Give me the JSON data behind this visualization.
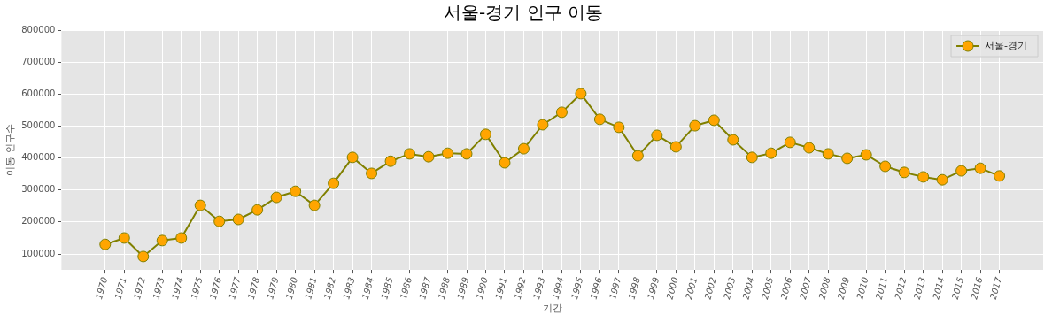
{
  "chart_data": {
    "type": "line",
    "title": "서울-경기 인구 이동",
    "xlabel": "기간",
    "ylabel": "이동 인구수",
    "categories": [
      "1970",
      "1971",
      "1972",
      "1973",
      "1974",
      "1975",
      "1976",
      "1977",
      "1978",
      "1979",
      "1980",
      "1981",
      "1982",
      "1983",
      "1984",
      "1985",
      "1986",
      "1987",
      "1988",
      "1989",
      "1990",
      "1991",
      "1992",
      "1993",
      "1994",
      "1995",
      "1996",
      "1997",
      "1998",
      "1999",
      "2000",
      "2001",
      "2002",
      "2003",
      "2004",
      "2005",
      "2006",
      "2007",
      "2008",
      "2009",
      "2010",
      "2011",
      "2012",
      "2013",
      "2014",
      "2015",
      "2016",
      "2017"
    ],
    "series": [
      {
        "name": "서울-경기",
        "color": "#808000",
        "values": [
          130000,
          150000,
          92000,
          142000,
          150000,
          252000,
          202000,
          208000,
          238000,
          277000,
          296000,
          252000,
          321000,
          402000,
          352000,
          390000,
          413000,
          404000,
          415000,
          413000,
          474000,
          385000,
          429000,
          504000,
          543000,
          601000,
          521000,
          496000,
          407000,
          471000,
          435000,
          501000,
          518000,
          457000,
          402000,
          415000,
          449000,
          432000,
          413000,
          399000,
          410000,
          374000,
          355000,
          341000,
          332000,
          360000,
          368000,
          344000
        ]
      }
    ],
    "ylim": [
      50000,
      800000
    ],
    "yticks": [
      100000,
      200000,
      300000,
      400000,
      500000,
      600000,
      700000,
      800000
    ],
    "grid": true,
    "legend": "top right",
    "marker": "circle",
    "line_style": "solid"
  }
}
